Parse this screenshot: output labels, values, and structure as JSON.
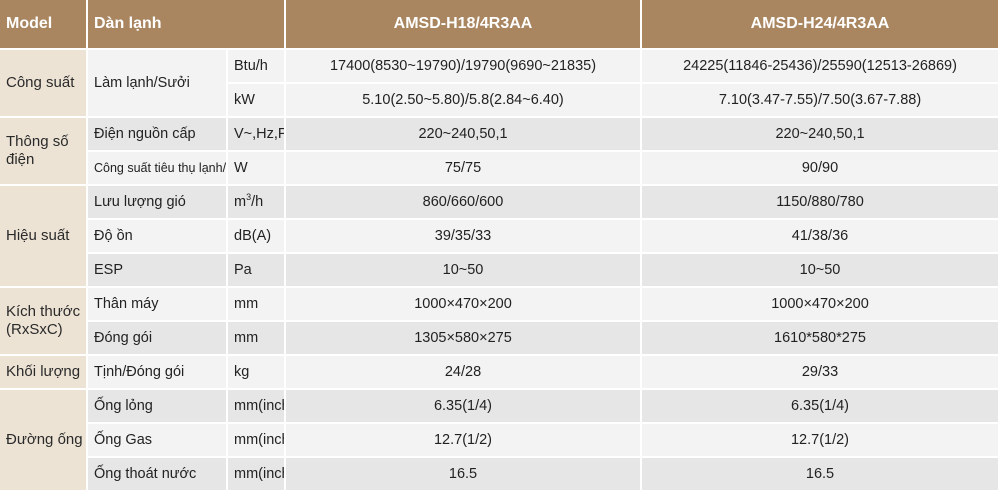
{
  "header": {
    "model_label": "Model",
    "indoor_label": "Dàn lạnh",
    "model_1": "AMSD-H18/4R3AA",
    "model_2": "AMSD-H24/4R3AA"
  },
  "groups": {
    "capacity": "Công suất",
    "electrical": "Thông số điện",
    "performance": "Hiệu suất",
    "dimensions": "Kích thước (RxSxC)",
    "weight": "Khối lượng",
    "piping": "Đường ống"
  },
  "rows": [
    {
      "item": "Làm lạnh/Sưởi",
      "unit": "Btu/h",
      "v1": "17400(8530~19790)/19790(9690~21835)",
      "v2": "24225(11846-25436)/25590(12513-26869)"
    },
    {
      "item": "",
      "unit": "kW",
      "v1": "5.10(2.50~5.80)/5.8(2.84~6.40)",
      "v2": "7.10(3.47-7.55)/7.50(3.67-7.88)"
    },
    {
      "item": "Điện nguồn cấp",
      "unit": "V~,Hz,Ph",
      "v1": "220~240,50,1",
      "v2": "220~240,50,1"
    },
    {
      "item": "Công suất tiêu thụ lạnh/sưởi",
      "unit": "W",
      "v1": "75/75",
      "v2": "90/90"
    },
    {
      "item": "Lưu lượng gió",
      "unit_base": "m",
      "unit_sup": "3",
      "unit_tail": "/h",
      "v1": "860/660/600",
      "v2": "1150/880/780"
    },
    {
      "item": "Độ ồn",
      "unit": "dB(A)",
      "v1": "39/35/33",
      "v2": "41/38/36"
    },
    {
      "item": "ESP",
      "unit": "Pa",
      "v1": "10~50",
      "v2": "10~50"
    },
    {
      "item": "Thân máy",
      "unit": "mm",
      "v1": "1000×470×200",
      "v2": "1000×470×200"
    },
    {
      "item": "Đóng gói",
      "unit": "mm",
      "v1": "1305×580×275",
      "v2": "1610*580*275"
    },
    {
      "item": "Tịnh/Đóng gói",
      "unit": "kg",
      "v1": "24/28",
      "v2": "29/33"
    },
    {
      "item": "Ống lỏng",
      "unit": "mm(inch)",
      "v1": "6.35(1/4)",
      "v2": "6.35(1/4)"
    },
    {
      "item": "Ống Gas",
      "unit": "mm(inch)",
      "v1": "12.7(1/2)",
      "v2": "12.7(1/2)"
    },
    {
      "item": "Ống thoát nước",
      "unit": "mm(inch)",
      "v1": "16.5",
      "v2": "16.5"
    }
  ]
}
